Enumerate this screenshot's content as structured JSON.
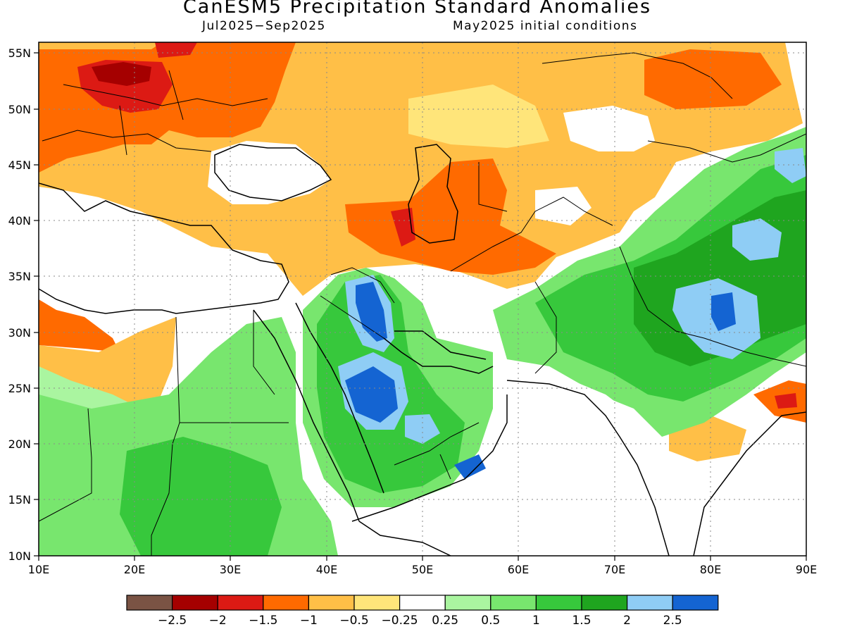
{
  "title": "CanESM5 Precipitation Standard Anomalies",
  "period": "Jul2025−Sep2025",
  "init": "May2025 initial conditions",
  "map": {
    "lon_range": [
      10,
      90
    ],
    "lat_range": [
      10,
      56
    ],
    "lon_ticks": [
      "10E",
      "20E",
      "30E",
      "40E",
      "50E",
      "60E",
      "70E",
      "80E",
      "90E"
    ],
    "lat_ticks": [
      "10N",
      "15N",
      "20N",
      "25N",
      "30N",
      "35N",
      "40N",
      "45N",
      "50N",
      "55N"
    ],
    "grid": "dotted"
  },
  "legend": {
    "colors": [
      "#7a5344",
      "#a50000",
      "#dc1a14",
      "#ff6a00",
      "#ffbf47",
      "#ffe57a",
      "#ffffff",
      "#aaf5a0",
      "#78e66e",
      "#37c83c",
      "#1fa51f",
      "#8fcdf5",
      "#1464d2"
    ],
    "labels": [
      "−2.5",
      "−2",
      "−1.5",
      "−1",
      "−0.5",
      "−0.25",
      "0.25",
      "0.5",
      "1",
      "1.5",
      "2",
      "2.5"
    ]
  }
}
